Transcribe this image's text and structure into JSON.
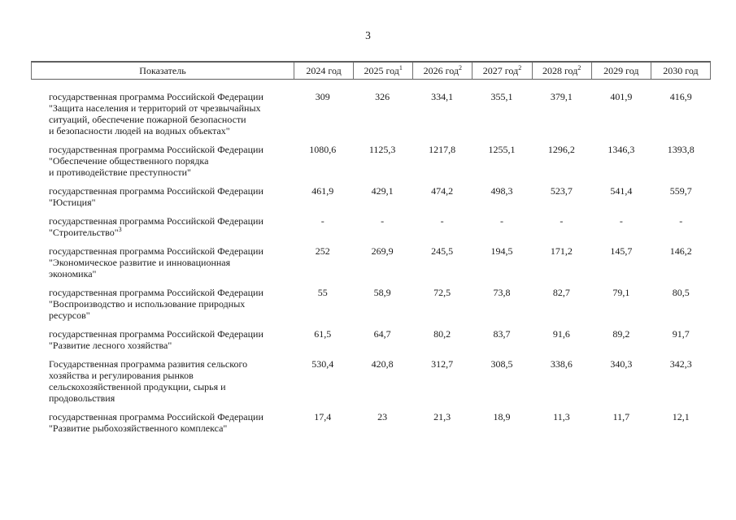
{
  "page": {
    "number": "3"
  },
  "table": {
    "columns": [
      {
        "label": "Показатель",
        "sup": ""
      },
      {
        "label": "2024 год",
        "sup": ""
      },
      {
        "label": "2025 год",
        "sup": "1"
      },
      {
        "label": "2026 год",
        "sup": "2"
      },
      {
        "label": "2027 год",
        "sup": "2"
      },
      {
        "label": "2028 год",
        "sup": "2"
      },
      {
        "label": "2029 год",
        "sup": ""
      },
      {
        "label": "2030 год",
        "sup": ""
      }
    ],
    "rows": [
      {
        "label": "государственная программа Российской Федерации\n\"Защита населения и территорий от чрезвычайных\nситуаций, обеспечение пожарной безопасности\nи безопасности людей на водных объектах\"",
        "sup": "",
        "values": [
          "309",
          "326",
          "334,1",
          "355,1",
          "379,1",
          "401,9",
          "416,9"
        ]
      },
      {
        "label": "государственная программа Российской Федерации\n\"Обеспечение общественного порядка\nи противодействие преступности\"",
        "sup": "",
        "values": [
          "1080,6",
          "1125,3",
          "1217,8",
          "1255,1",
          "1296,2",
          "1346,3",
          "1393,8"
        ]
      },
      {
        "label": "государственная программа Российской Федерации\n\"Юстиция\"",
        "sup": "",
        "values": [
          "461,9",
          "429,1",
          "474,2",
          "498,3",
          "523,7",
          "541,4",
          "559,7"
        ]
      },
      {
        "label": "государственная программа Российской Федерации\n\"Строительство\"",
        "sup": "3",
        "values": [
          "-",
          "-",
          "-",
          "-",
          "-",
          "-",
          "-"
        ]
      },
      {
        "label": "государственная программа Российской Федерации\n\"Экономическое развитие и инновационная\nэкономика\"",
        "sup": "",
        "values": [
          "252",
          "269,9",
          "245,5",
          "194,5",
          "171,2",
          "145,7",
          "146,2"
        ]
      },
      {
        "label": "государственная программа Российской Федерации\n\"Воспроизводство и использование природных\nресурсов\"",
        "sup": "",
        "values": [
          "55",
          "58,9",
          "72,5",
          "73,8",
          "82,7",
          "79,1",
          "80,5"
        ]
      },
      {
        "label": "государственная программа Российской Федерации\n\"Развитие лесного хозяйства\"",
        "sup": "",
        "values": [
          "61,5",
          "64,7",
          "80,2",
          "83,7",
          "91,6",
          "89,2",
          "91,7"
        ]
      },
      {
        "label": "Государственная программа развития сельского\nхозяйства и регулирования рынков\nсельскохозяйственной продукции, сырья и\nпродовольствия",
        "sup": "",
        "values": [
          "530,4",
          "420,8",
          "312,7",
          "308,5",
          "338,6",
          "340,3",
          "342,3"
        ]
      },
      {
        "label": "государственная программа Российской Федерации\n\"Развитие рыбохозяйственного комплекса\"",
        "sup": "",
        "values": [
          "17,4",
          "23",
          "21,3",
          "18,9",
          "11,3",
          "11,7",
          "12,1"
        ]
      }
    ]
  }
}
